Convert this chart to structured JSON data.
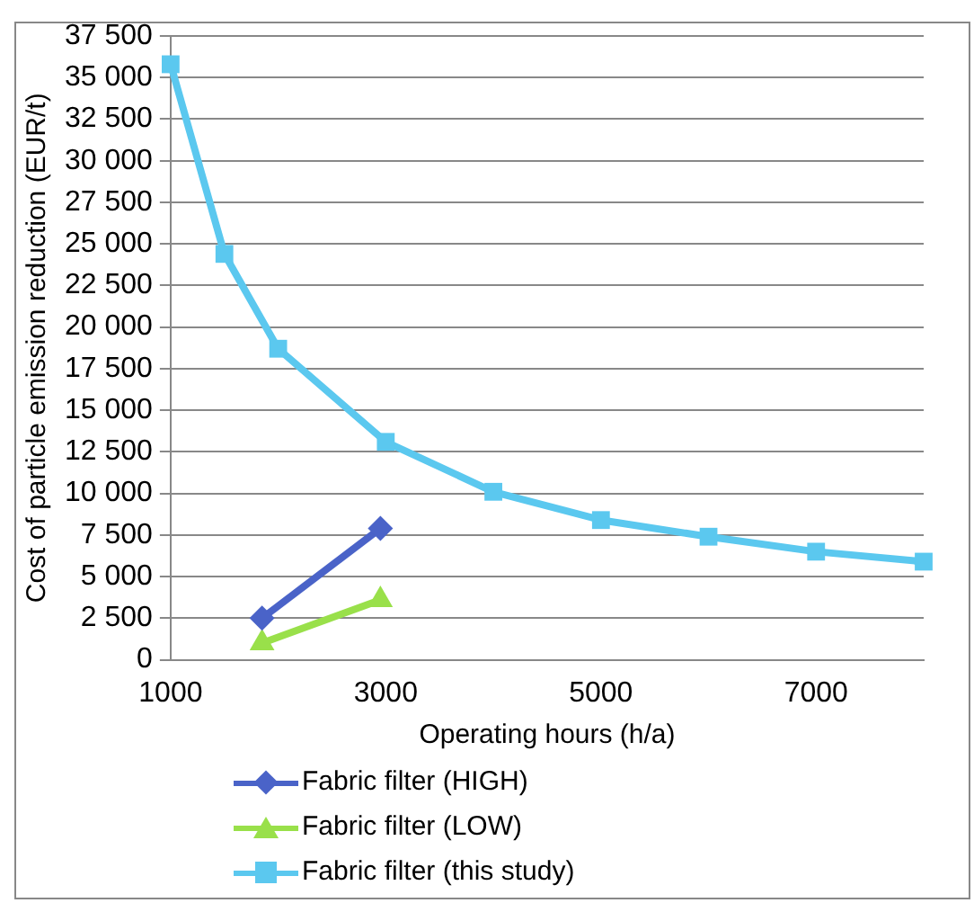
{
  "chart_data": {
    "type": "line",
    "xlabel": "Operating hours (h/a)",
    "ylabel": "Cost of particle emission reduction (EUR/t)",
    "xlim": [
      1000,
      8000
    ],
    "xticks": [
      1000,
      3000,
      5000,
      7000
    ],
    "ylim": [
      0,
      37500
    ],
    "yticks": [
      {
        "value": 0,
        "label": "0"
      },
      {
        "value": 2500,
        "label": "2 500"
      },
      {
        "value": 5000,
        "label": "5 000"
      },
      {
        "value": 7500,
        "label": "7 500"
      },
      {
        "value": 10000,
        "label": "10 000"
      },
      {
        "value": 12500,
        "label": "12 500"
      },
      {
        "value": 15000,
        "label": "15 000"
      },
      {
        "value": 17500,
        "label": "17 500"
      },
      {
        "value": 20000,
        "label": "20 000"
      },
      {
        "value": 22500,
        "label": "22 500"
      },
      {
        "value": 25000,
        "label": "25 000"
      },
      {
        "value": 27500,
        "label": "27 500"
      },
      {
        "value": 30000,
        "label": "30 000"
      },
      {
        "value": 32500,
        "label": "32 500"
      },
      {
        "value": 35000,
        "label": "35 000"
      },
      {
        "value": 37500,
        "label": "37 500"
      }
    ],
    "grid": "y",
    "legend": "bottom",
    "series": [
      {
        "name": "Fabric filter (HIGH)",
        "color": "#4a63c8",
        "marker": "diamond",
        "x": [
          1850,
          2950
        ],
        "values": [
          2500,
          7900
        ]
      },
      {
        "name": "Fabric filter (LOW)",
        "color": "#99e04a",
        "marker": "triangle",
        "x": [
          1850,
          2950
        ],
        "values": [
          1000,
          3600
        ]
      },
      {
        "name": "Fabric filter (this study)",
        "color": "#5bc8ef",
        "marker": "square",
        "x": [
          1000,
          1500,
          2000,
          3000,
          4000,
          5000,
          6000,
          7000,
          8000
        ],
        "values": [
          35800,
          24400,
          18700,
          13100,
          10100,
          8400,
          7400,
          6500,
          5900
        ]
      }
    ]
  }
}
